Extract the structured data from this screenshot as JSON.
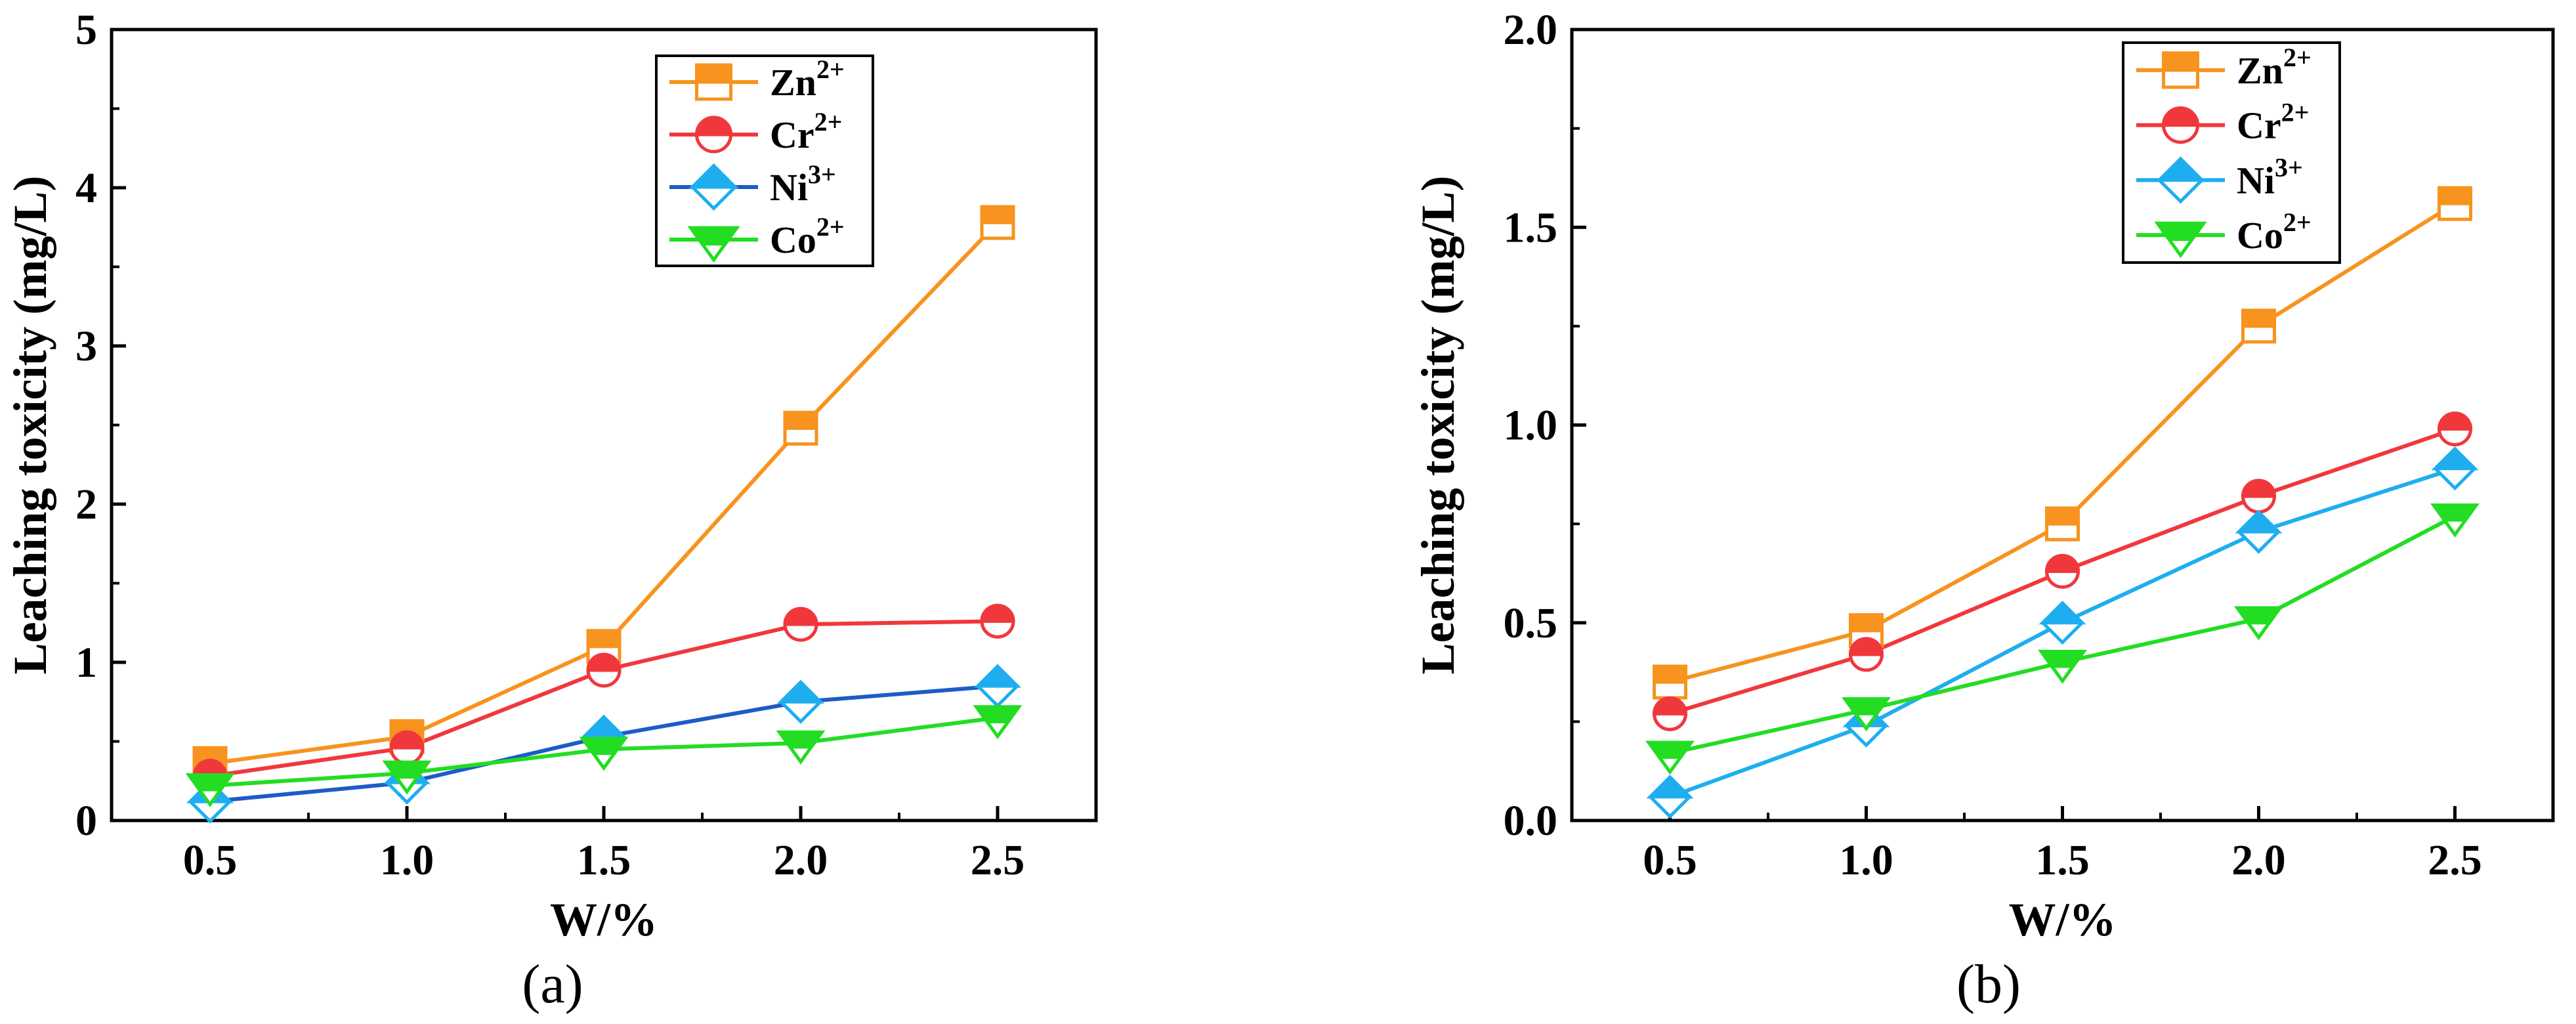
{
  "chart_data": [
    {
      "type": "line",
      "panel_label": "(a)",
      "xlabel": "W/%",
      "ylabel": "Leaching toxicity (mg/L)",
      "x": [
        0.5,
        1.0,
        1.5,
        2.0,
        2.5
      ],
      "x_tick_labels": [
        "0.5",
        "1.0",
        "1.5",
        "2.0",
        "2.5"
      ],
      "y_tick_labels": [
        "0",
        "1",
        "2",
        "3",
        "4",
        "5"
      ],
      "xlim": [
        0.25,
        2.75
      ],
      "ylim": [
        0,
        5
      ],
      "legend_position": "top-right",
      "series": [
        {
          "name": "Zn",
          "charge": "2+",
          "marker": "square",
          "color": "#F7931E",
          "values": [
            0.36,
            0.53,
            1.1,
            2.48,
            3.78
          ]
        },
        {
          "name": "Cr",
          "charge": "2+",
          "marker": "circle",
          "color": "#F0383C",
          "values": [
            0.28,
            0.46,
            0.95,
            1.24,
            1.26
          ]
        },
        {
          "name": "Ni",
          "charge": "3+",
          "marker": "diamond",
          "color": "#1E5BC6",
          "marker_color": "#1EAEF0",
          "values": [
            0.12,
            0.24,
            0.53,
            0.75,
            0.85
          ]
        },
        {
          "name": "Co",
          "charge": "2+",
          "marker": "triangle-down",
          "color": "#22DD22",
          "values": [
            0.22,
            0.3,
            0.45,
            0.49,
            0.65
          ]
        }
      ]
    },
    {
      "type": "line",
      "panel_label": "(b)",
      "xlabel": "W/%",
      "ylabel": "Leaching toxicity (mg/L)",
      "x": [
        0.5,
        1.0,
        1.5,
        2.0,
        2.5
      ],
      "x_tick_labels": [
        "0.5",
        "1.0",
        "1.5",
        "2.0",
        "2.5"
      ],
      "y_tick_labels": [
        "0.0",
        "0.5",
        "1.0",
        "1.5",
        "2.0"
      ],
      "xlim": [
        0.25,
        2.75
      ],
      "ylim": [
        0,
        2.0
      ],
      "legend_position": "top-right",
      "series": [
        {
          "name": "Zn",
          "charge": "2+",
          "marker": "square",
          "color": "#F7931E",
          "values": [
            0.35,
            0.48,
            0.75,
            1.25,
            1.56
          ]
        },
        {
          "name": "Cr",
          "charge": "2+",
          "marker": "circle",
          "color": "#F0383C",
          "values": [
            0.27,
            0.42,
            0.63,
            0.82,
            0.99
          ]
        },
        {
          "name": "Ni",
          "charge": "3+",
          "marker": "diamond",
          "color": "#1EAEF0",
          "marker_color": "#1EAEF0",
          "values": [
            0.06,
            0.24,
            0.5,
            0.73,
            0.89
          ]
        },
        {
          "name": "Co",
          "charge": "2+",
          "marker": "triangle-down",
          "color": "#22DD22",
          "values": [
            0.17,
            0.28,
            0.4,
            0.51,
            0.77
          ]
        }
      ]
    }
  ]
}
